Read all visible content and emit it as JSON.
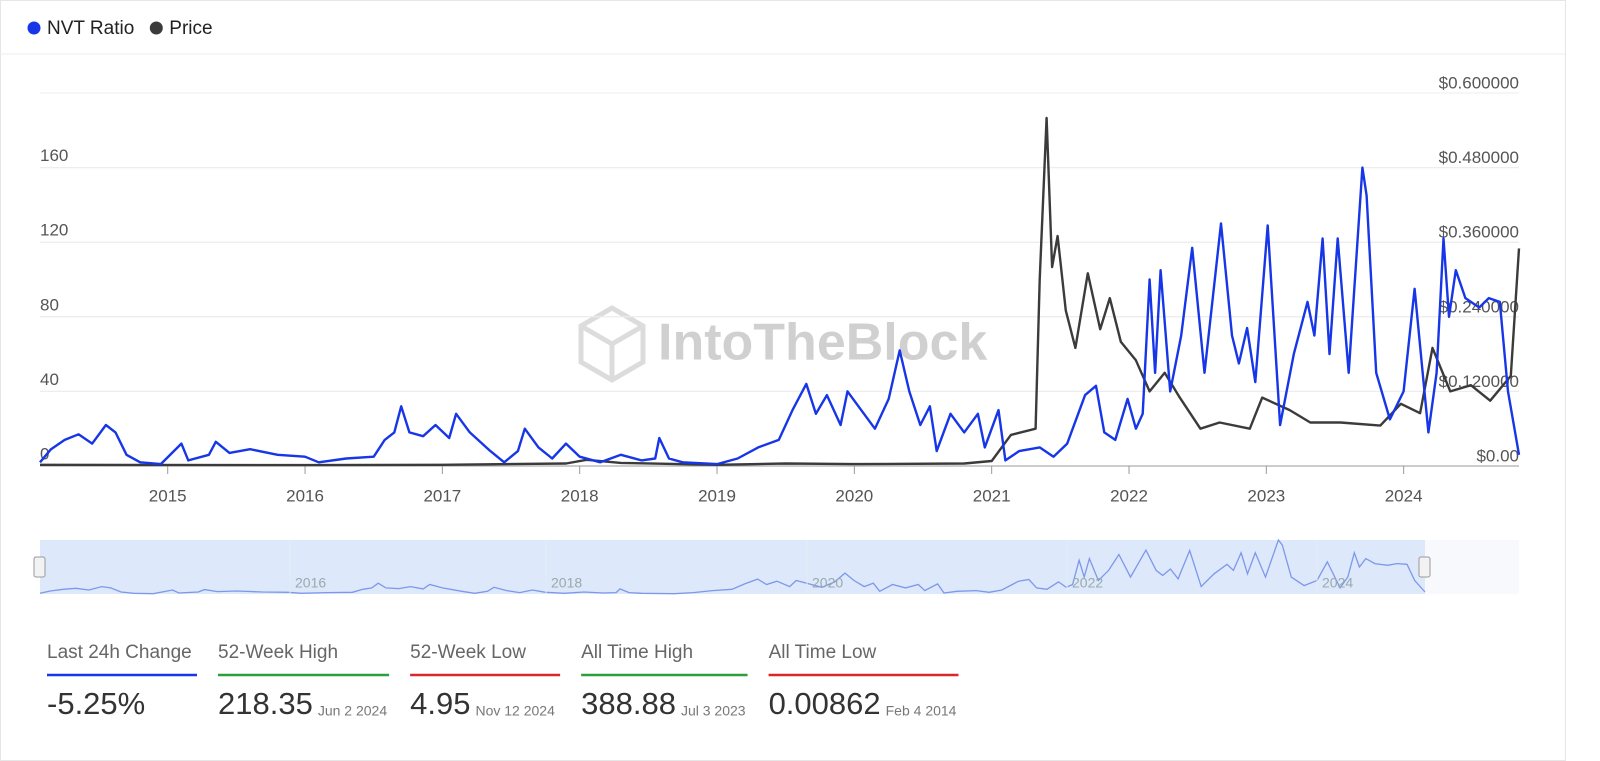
{
  "chart_data": {
    "type": "line",
    "watermark": "IntoTheBlock",
    "xlim": [
      2014.07,
      2024.84
    ],
    "xticks": [
      2015,
      2016,
      2017,
      2018,
      2019,
      2020,
      2021,
      2022,
      2023,
      2024
    ],
    "ylim": [
      0,
      200
    ],
    "yticks": [
      0,
      40,
      80,
      120,
      160
    ],
    "y2lim": [
      0,
      0.6
    ],
    "y2ticks": [
      {
        "value": 0,
        "label": "$0.00"
      },
      {
        "value": 0.12,
        "label": "$0.120000"
      },
      {
        "value": 0.24,
        "label": "$0.240000"
      },
      {
        "value": 0.36,
        "label": "$0.360000"
      },
      {
        "value": 0.48,
        "label": "$0.480000"
      },
      {
        "value": 0.6,
        "label": "$0.600000"
      }
    ],
    "grid": true,
    "legend": "top-left",
    "series": [
      {
        "name": "NVT Ratio",
        "color": "#1636e8",
        "x": [
          2014.07,
          2014.15,
          2014.25,
          2014.35,
          2014.45,
          2014.55,
          2014.62,
          2014.7,
          2014.8,
          2014.95,
          2015.1,
          2015.15,
          2015.3,
          2015.35,
          2015.45,
          2015.6,
          2015.8,
          2016.0,
          2016.1,
          2016.3,
          2016.5,
          2016.58,
          2016.65,
          2016.7,
          2016.76,
          2016.86,
          2016.95,
          2017.05,
          2017.1,
          2017.2,
          2017.35,
          2017.45,
          2017.55,
          2017.6,
          2017.7,
          2017.8,
          2017.9,
          2018.0,
          2018.15,
          2018.3,
          2018.45,
          2018.55,
          2018.58,
          2018.65,
          2018.75,
          2019.0,
          2019.15,
          2019.3,
          2019.45,
          2019.55,
          2019.65,
          2019.72,
          2019.8,
          2019.9,
          2019.95,
          2020.05,
          2020.15,
          2020.25,
          2020.33,
          2020.4,
          2020.48,
          2020.55,
          2020.6,
          2020.7,
          2020.8,
          2020.9,
          2020.95,
          2021.05,
          2021.1,
          2021.2,
          2021.35,
          2021.45,
          2021.55,
          2021.68,
          2021.76,
          2021.82,
          2021.9,
          2021.99,
          2022.05,
          2022.1,
          2022.15,
          2022.19,
          2022.23,
          2022.3,
          2022.38,
          2022.46,
          2022.55,
          2022.67,
          2022.75,
          2022.8,
          2022.86,
          2022.92,
          2023.01,
          2023.1,
          2023.2,
          2023.3,
          2023.35,
          2023.41,
          2023.46,
          2023.52,
          2023.6,
          2023.7,
          2023.73,
          2023.8,
          2023.9,
          2024.0,
          2024.08,
          2024.18,
          2024.24,
          2024.29,
          2024.33,
          2024.38,
          2024.45,
          2024.55,
          2024.62,
          2024.7,
          2024.76,
          2024.84
        ],
        "values": [
          2,
          9,
          14,
          17,
          12,
          22,
          18,
          6,
          2,
          1,
          12,
          3,
          6,
          13,
          7,
          9,
          6,
          5,
          2,
          4,
          5,
          14,
          18,
          32,
          18,
          16,
          22,
          15,
          28,
          18,
          8,
          2,
          8,
          20,
          10,
          4,
          12,
          5,
          2,
          6,
          3,
          4,
          15,
          4,
          2,
          1,
          4,
          10,
          14,
          30,
          44,
          28,
          38,
          22,
          40,
          30,
          20,
          36,
          62,
          40,
          22,
          32,
          8,
          28,
          18,
          28,
          10,
          30,
          3,
          8,
          10,
          5,
          12,
          38,
          43,
          18,
          14,
          36,
          20,
          28,
          100,
          50,
          105,
          40,
          70,
          117,
          50,
          130,
          70,
          55,
          74,
          45,
          129,
          22,
          60,
          88,
          70,
          122,
          60,
          122,
          50,
          160,
          145,
          50,
          25,
          40,
          95,
          18,
          50,
          122,
          80,
          105,
          90,
          85,
          90,
          88,
          40,
          6
        ]
      },
      {
        "name": "Price",
        "color": "#3b3b3b",
        "axis": "y2",
        "x": [
          2014.07,
          2016.0,
          2017.0,
          2017.9,
          2018.05,
          2018.3,
          2019.0,
          2019.5,
          2020.0,
          2020.8,
          2021.0,
          2021.14,
          2021.32,
          2021.35,
          2021.4,
          2021.44,
          2021.48,
          2021.54,
          2021.61,
          2021.7,
          2021.79,
          2021.86,
          2021.94,
          2022.05,
          2022.15,
          2022.26,
          2022.37,
          2022.52,
          2022.66,
          2022.88,
          2022.97,
          2023.17,
          2023.32,
          2023.54,
          2023.83,
          2023.98,
          2024.12,
          2024.21,
          2024.34,
          2024.49,
          2024.63,
          2024.78,
          2024.84
        ],
        "values": [
          0.002,
          0.0015,
          0.002,
          0.004,
          0.01,
          0.005,
          0.002,
          0.004,
          0.003,
          0.004,
          0.008,
          0.05,
          0.06,
          0.3,
          0.56,
          0.32,
          0.37,
          0.25,
          0.19,
          0.31,
          0.22,
          0.27,
          0.2,
          0.17,
          0.12,
          0.15,
          0.11,
          0.06,
          0.07,
          0.06,
          0.11,
          0.09,
          0.07,
          0.07,
          0.065,
          0.1,
          0.085,
          0.19,
          0.12,
          0.13,
          0.105,
          0.145,
          0.35
        ]
      }
    ],
    "navigator": {
      "labels": [
        "2016",
        "2018",
        "2020",
        "2022",
        "2024"
      ]
    },
    "stats": [
      {
        "label": "Last 24h Change",
        "value": "-5.25%",
        "color": "#1636e8"
      },
      {
        "label": "52-Week High",
        "value": "218.35",
        "date": "Jun 2 2024",
        "color": "#2e9e3a"
      },
      {
        "label": "52-Week Low",
        "value": "4.95",
        "date": "Nov 12 2024",
        "color": "#d8262b"
      },
      {
        "label": "All Time High",
        "value": "388.88",
        "date": "Jul 3 2023",
        "color": "#2e9e3a"
      },
      {
        "label": "All Time Low",
        "value": "0.00862",
        "date": "Feb 4 2014",
        "color": "#d8262b"
      }
    ]
  }
}
